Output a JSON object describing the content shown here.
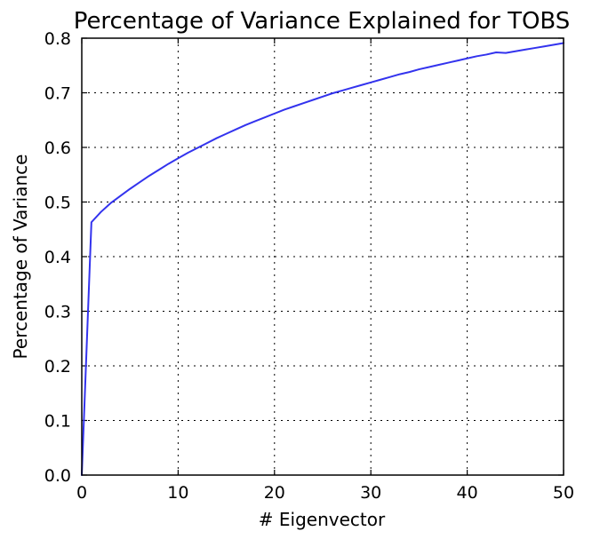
{
  "chart_data": {
    "type": "line",
    "title": "Percentage of Variance Explained for TOBS",
    "xlabel": "# Eigenvector",
    "ylabel": "Percentage of Variance",
    "xlim": [
      0,
      50
    ],
    "ylim": [
      0.0,
      0.8
    ],
    "x_ticks": [
      0,
      10,
      20,
      30,
      40,
      50
    ],
    "x_tick_labels": [
      "0",
      "10",
      "20",
      "30",
      "40",
      "50"
    ],
    "y_ticks": [
      0.0,
      0.1,
      0.2,
      0.3,
      0.4,
      0.5,
      0.6,
      0.7,
      0.8
    ],
    "y_tick_labels": [
      "0.0",
      "0.1",
      "0.2",
      "0.3",
      "0.4",
      "0.5",
      "0.6",
      "0.7",
      "0.8"
    ],
    "grid": true,
    "series": [
      {
        "color": "#3333ee",
        "x": [
          0,
          1,
          2,
          3,
          4,
          5,
          6,
          7,
          8,
          9,
          10,
          11,
          12,
          13,
          14,
          15,
          16,
          17,
          18,
          19,
          20,
          21,
          22,
          23,
          24,
          25,
          26,
          27,
          28,
          29,
          30,
          31,
          32,
          33,
          34,
          35,
          36,
          37,
          38,
          39,
          40,
          41,
          42,
          43,
          44,
          45,
          46,
          47,
          48,
          49,
          50
        ],
        "y": [
          0.0,
          0.463,
          0.482,
          0.498,
          0.511,
          0.524,
          0.536,
          0.548,
          0.559,
          0.57,
          0.58,
          0.59,
          0.599,
          0.608,
          0.617,
          0.625,
          0.633,
          0.641,
          0.648,
          0.655,
          0.662,
          0.669,
          0.675,
          0.681,
          0.687,
          0.693,
          0.699,
          0.704,
          0.709,
          0.714,
          0.719,
          0.724,
          0.729,
          0.734,
          0.738,
          0.743,
          0.747,
          0.751,
          0.755,
          0.759,
          0.763,
          0.767,
          0.77,
          0.774,
          0.773,
          0.776,
          0.779,
          0.782,
          0.785,
          0.788,
          0.791
        ]
      }
    ]
  }
}
